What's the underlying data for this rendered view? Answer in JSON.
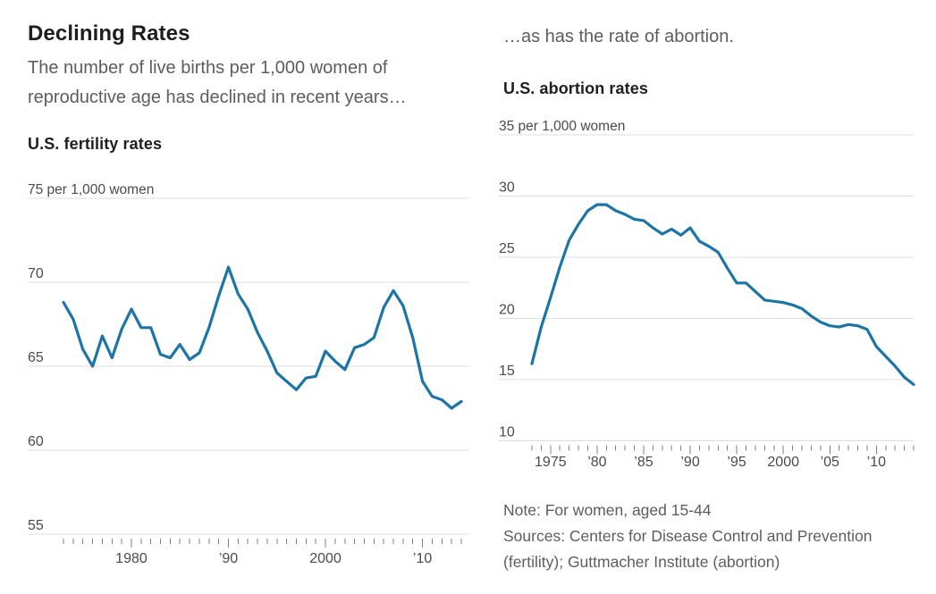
{
  "header": {
    "title": "Declining Rates",
    "subtitle_left": "The number of live births per 1,000 women of reproductive age has declined in recent years…",
    "subtitle_right": "…as has the rate of abortion."
  },
  "footer": {
    "note": "Note: For women, aged 15-44",
    "sources": "Sources: Centers for Disease Control and Prevention (fertility); Guttmacher Institute (abortion)"
  },
  "colors": {
    "line_blue": "#1c75a4",
    "gridline": "#dcdcdc",
    "tick_mark": "#7f7f7f",
    "axis_text": "#4a4a4a",
    "heading_text": "#1e1e1e",
    "body_text": "#5d5d5d"
  },
  "chart_data": [
    {
      "id": "fertility",
      "type": "line",
      "title": "U.S. fertility rates",
      "unit_label": "per 1,000 women",
      "ylim": [
        55,
        75
      ],
      "yticks": [
        75,
        70,
        65,
        60,
        55
      ],
      "grid": true,
      "legend": "none",
      "line_color": "#1c75a4",
      "xticks": [
        {
          "year": 1980,
          "label": "1980"
        },
        {
          "year": 1990,
          "label": "’90"
        },
        {
          "year": 2000,
          "label": "2000"
        },
        {
          "year": 2010,
          "label": "’10"
        }
      ],
      "years": [
        1973,
        1974,
        1975,
        1976,
        1977,
        1978,
        1979,
        1980,
        1981,
        1982,
        1983,
        1984,
        1985,
        1986,
        1987,
        1988,
        1989,
        1990,
        1991,
        1992,
        1993,
        1994,
        1995,
        1996,
        1997,
        1998,
        1999,
        2000,
        2001,
        2002,
        2003,
        2004,
        2005,
        2006,
        2007,
        2008,
        2009,
        2010,
        2011,
        2012,
        2013,
        2014
      ],
      "values": [
        68.8,
        67.8,
        66.0,
        65.0,
        66.8,
        65.5,
        67.2,
        68.4,
        67.3,
        67.3,
        65.7,
        65.5,
        66.3,
        65.4,
        65.8,
        67.3,
        69.2,
        70.9,
        69.3,
        68.4,
        67.0,
        65.9,
        64.6,
        64.1,
        63.6,
        64.3,
        64.4,
        65.9,
        65.3,
        64.8,
        66.1,
        66.3,
        66.7,
        68.5,
        69.5,
        68.6,
        66.7,
        64.1,
        63.2,
        63.0,
        62.5,
        62.9
      ]
    },
    {
      "id": "abortion",
      "type": "line",
      "title": "U.S. abortion rates",
      "unit_label": "per 1,000 women",
      "ylim": [
        10,
        35
      ],
      "yticks": [
        35,
        30,
        25,
        20,
        15,
        10
      ],
      "grid": true,
      "legend": "none",
      "line_color": "#1c75a4",
      "xticks": [
        {
          "year": 1975,
          "label": "1975"
        },
        {
          "year": 1980,
          "label": "’80"
        },
        {
          "year": 1985,
          "label": "’85"
        },
        {
          "year": 1990,
          "label": "’90"
        },
        {
          "year": 1995,
          "label": "’95"
        },
        {
          "year": 2000,
          "label": "2000"
        },
        {
          "year": 2005,
          "label": "’05"
        },
        {
          "year": 2010,
          "label": "’10"
        }
      ],
      "years": [
        1973,
        1974,
        1975,
        1976,
        1977,
        1978,
        1979,
        1980,
        1981,
        1982,
        1983,
        1984,
        1985,
        1986,
        1987,
        1988,
        1989,
        1990,
        1991,
        1992,
        1993,
        1994,
        1995,
        1996,
        1997,
        1998,
        1999,
        2000,
        2001,
        2002,
        2003,
        2004,
        2005,
        2006,
        2007,
        2008,
        2009,
        2010,
        2011,
        2012,
        2013,
        2014
      ],
      "values": [
        16.3,
        19.3,
        21.7,
        24.2,
        26.4,
        27.7,
        28.8,
        29.3,
        29.3,
        28.8,
        28.5,
        28.1,
        28.0,
        27.4,
        26.9,
        27.3,
        26.8,
        27.4,
        26.3,
        25.9,
        25.4,
        24.1,
        22.9,
        22.9,
        22.2,
        21.5,
        21.4,
        21.3,
        21.1,
        20.8,
        20.2,
        19.7,
        19.4,
        19.3,
        19.5,
        19.4,
        19.1,
        17.7,
        16.9,
        16.1,
        15.2,
        14.6
      ]
    }
  ]
}
